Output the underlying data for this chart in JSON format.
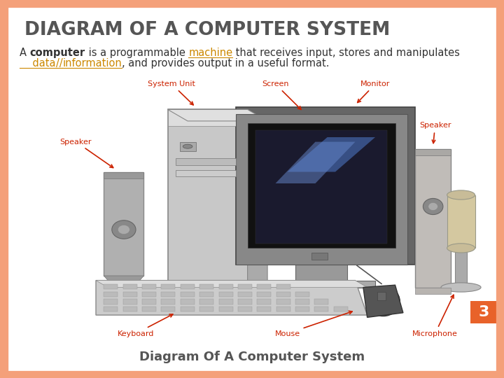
{
  "title": "DIAGRAM OF A COMPUTER SYSTEM",
  "title_fontsize": 19,
  "title_color": "#555555",
  "subtitle_parts_line1": [
    {
      "text": "A ",
      "color": "#333333",
      "bold": false,
      "underline": false
    },
    {
      "text": "computer",
      "color": "#333333",
      "bold": true,
      "underline": false
    },
    {
      "text": " is a programmable ",
      "color": "#333333",
      "bold": false,
      "underline": false
    },
    {
      "text": "machine",
      "color": "#CC8800",
      "bold": false,
      "underline": true
    },
    {
      "text": " that receives input, stores and manipulates",
      "color": "#333333",
      "bold": false,
      "underline": false
    }
  ],
  "subtitle_parts_line2": [
    {
      "text": "    data",
      "color": "#CC8800",
      "bold": false,
      "underline": true
    },
    {
      "text": "//",
      "color": "#CC8800",
      "bold": false,
      "underline": true
    },
    {
      "text": "information",
      "color": "#CC8800",
      "bold": false,
      "underline": true
    },
    {
      "text": ", and provides output in a useful format.",
      "color": "#333333",
      "bold": false,
      "underline": false
    }
  ],
  "subtitle_fontsize": 10.5,
  "caption": "Diagram Of A Computer System",
  "caption_fontsize": 13,
  "caption_color": "#555555",
  "page_number": "3",
  "page_num_bg": "#E8622A",
  "page_num_color": "#ffffff",
  "background_color": "#ffffff",
  "border_color": "#F4A07A",
  "label_color": "#cc2200",
  "label_fontsize": 8,
  "arrow_color": "#cc2200"
}
